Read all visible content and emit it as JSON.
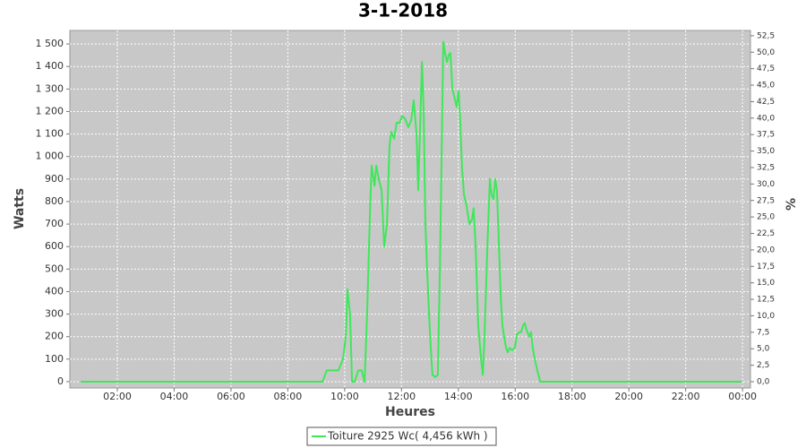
{
  "chart_data": {
    "type": "line",
    "title": "3-1-2018",
    "x_label": "Heures",
    "y_label": "Watts",
    "y2_label": "%",
    "x": [
      0.71,
      9.22,
      9.37,
      9.6,
      9.78,
      9.94,
      10.04,
      10.1,
      10.19,
      10.26,
      10.35,
      10.48,
      10.6,
      10.7,
      10.79,
      10.89,
      10.95,
      11.05,
      11.11,
      11.2,
      11.3,
      11.39,
      11.49,
      11.58,
      11.64,
      11.74,
      11.83,
      11.93,
      12.02,
      12.12,
      12.24,
      12.34,
      12.43,
      12.53,
      12.59,
      12.65,
      12.72,
      12.78,
      12.84,
      12.9,
      12.97,
      13.03,
      13.09,
      13.19,
      13.28,
      13.35,
      13.41,
      13.47,
      13.53,
      13.6,
      13.66,
      13.72,
      13.79,
      13.85,
      13.94,
      14.01,
      14.07,
      14.13,
      14.2,
      14.29,
      14.39,
      14.48,
      14.54,
      14.61,
      14.7,
      14.8,
      14.86,
      14.92,
      15.02,
      15.11,
      15.17,
      15.24,
      15.3,
      15.36,
      15.43,
      15.49,
      15.55,
      15.61,
      15.68,
      15.74,
      15.8,
      15.9,
      15.99,
      16.06,
      16.15,
      16.21,
      16.28,
      16.34,
      16.4,
      16.5,
      16.56,
      16.62,
      16.69,
      16.78,
      16.88,
      23.97
    ],
    "series": [
      {
        "name": "Toiture 2925 Wc( 4,456 kWh )",
        "color": "#3ee85a",
        "values": [
          0,
          0,
          50,
          50,
          50,
          100,
          200,
          410,
          300,
          0,
          0,
          50,
          50,
          0,
          300,
          750,
          960,
          870,
          960,
          900,
          850,
          600,
          700,
          1050,
          1110,
          1080,
          1150,
          1150,
          1180,
          1170,
          1130,
          1160,
          1250,
          1100,
          850,
          1100,
          1420,
          1200,
          700,
          500,
          300,
          150,
          30,
          20,
          30,
          500,
          1000,
          1510,
          1460,
          1420,
          1450,
          1460,
          1300,
          1270,
          1220,
          1290,
          1150,
          950,
          830,
          780,
          700,
          720,
          770,
          600,
          250,
          100,
          30,
          200,
          600,
          900,
          830,
          810,
          900,
          850,
          600,
          380,
          250,
          200,
          150,
          130,
          150,
          140,
          150,
          210,
          220,
          220,
          250,
          260,
          230,
          200,
          220,
          150,
          100,
          50,
          0,
          0
        ]
      }
    ],
    "xlim": [
      0.33,
      24.28
    ],
    "ylim": [
      -28,
      1560
    ],
    "y2lim": [
      -0.95,
      53.3
    ],
    "xticks": [
      {
        "value": 2,
        "label": "02:00"
      },
      {
        "value": 4,
        "label": "04:00"
      },
      {
        "value": 6,
        "label": "06:00"
      },
      {
        "value": 8,
        "label": "08:00"
      },
      {
        "value": 10,
        "label": "10:00"
      },
      {
        "value": 12,
        "label": "12:00"
      },
      {
        "value": 14,
        "label": "14:00"
      },
      {
        "value": 16,
        "label": "16:00"
      },
      {
        "value": 18,
        "label": "18:00"
      },
      {
        "value": 20,
        "label": "20:00"
      },
      {
        "value": 22,
        "label": "22:00"
      },
      {
        "value": 24,
        "label": "00:00"
      }
    ],
    "yticks": [
      0,
      100,
      200,
      300,
      400,
      500,
      600,
      700,
      800,
      900,
      {
        "value": 1000,
        "label": "1 000"
      },
      {
        "value": 1100,
        "label": "1 100"
      },
      {
        "value": 1200,
        "label": "1 200"
      },
      {
        "value": 1300,
        "label": "1 300"
      },
      {
        "value": 1400,
        "label": "1 400"
      },
      {
        "value": 1500,
        "label": "1 500"
      }
    ],
    "y2ticks": [
      {
        "value": 0,
        "label": "0,0"
      },
      {
        "value": 2.5,
        "label": "2,5"
      },
      {
        "value": 5,
        "label": "5,0"
      },
      {
        "value": 7.5,
        "label": "7,5"
      },
      {
        "value": 10,
        "label": "10,0"
      },
      {
        "value": 12.5,
        "label": "12,5"
      },
      {
        "value": 15,
        "label": "15,0"
      },
      {
        "value": 17.5,
        "label": "17,5"
      },
      {
        "value": 20,
        "label": "20,0"
      },
      {
        "value": 22.5,
        "label": "22,5"
      },
      {
        "value": 25,
        "label": "25,0"
      },
      {
        "value": 27.5,
        "label": "27,5"
      },
      {
        "value": 30,
        "label": "30,0"
      },
      {
        "value": 32.5,
        "label": "32,5"
      },
      {
        "value": 35,
        "label": "35,0"
      },
      {
        "value": 37.5,
        "label": "37,5"
      },
      {
        "value": 40,
        "label": "40,0"
      },
      {
        "value": 42.5,
        "label": "42,5"
      },
      {
        "value": 45,
        "label": "45,0"
      },
      {
        "value": 47.5,
        "label": "47,5"
      },
      {
        "value": 50,
        "label": "50,0"
      },
      {
        "value": 52.5,
        "label": "52,5"
      }
    ],
    "grid": true
  }
}
